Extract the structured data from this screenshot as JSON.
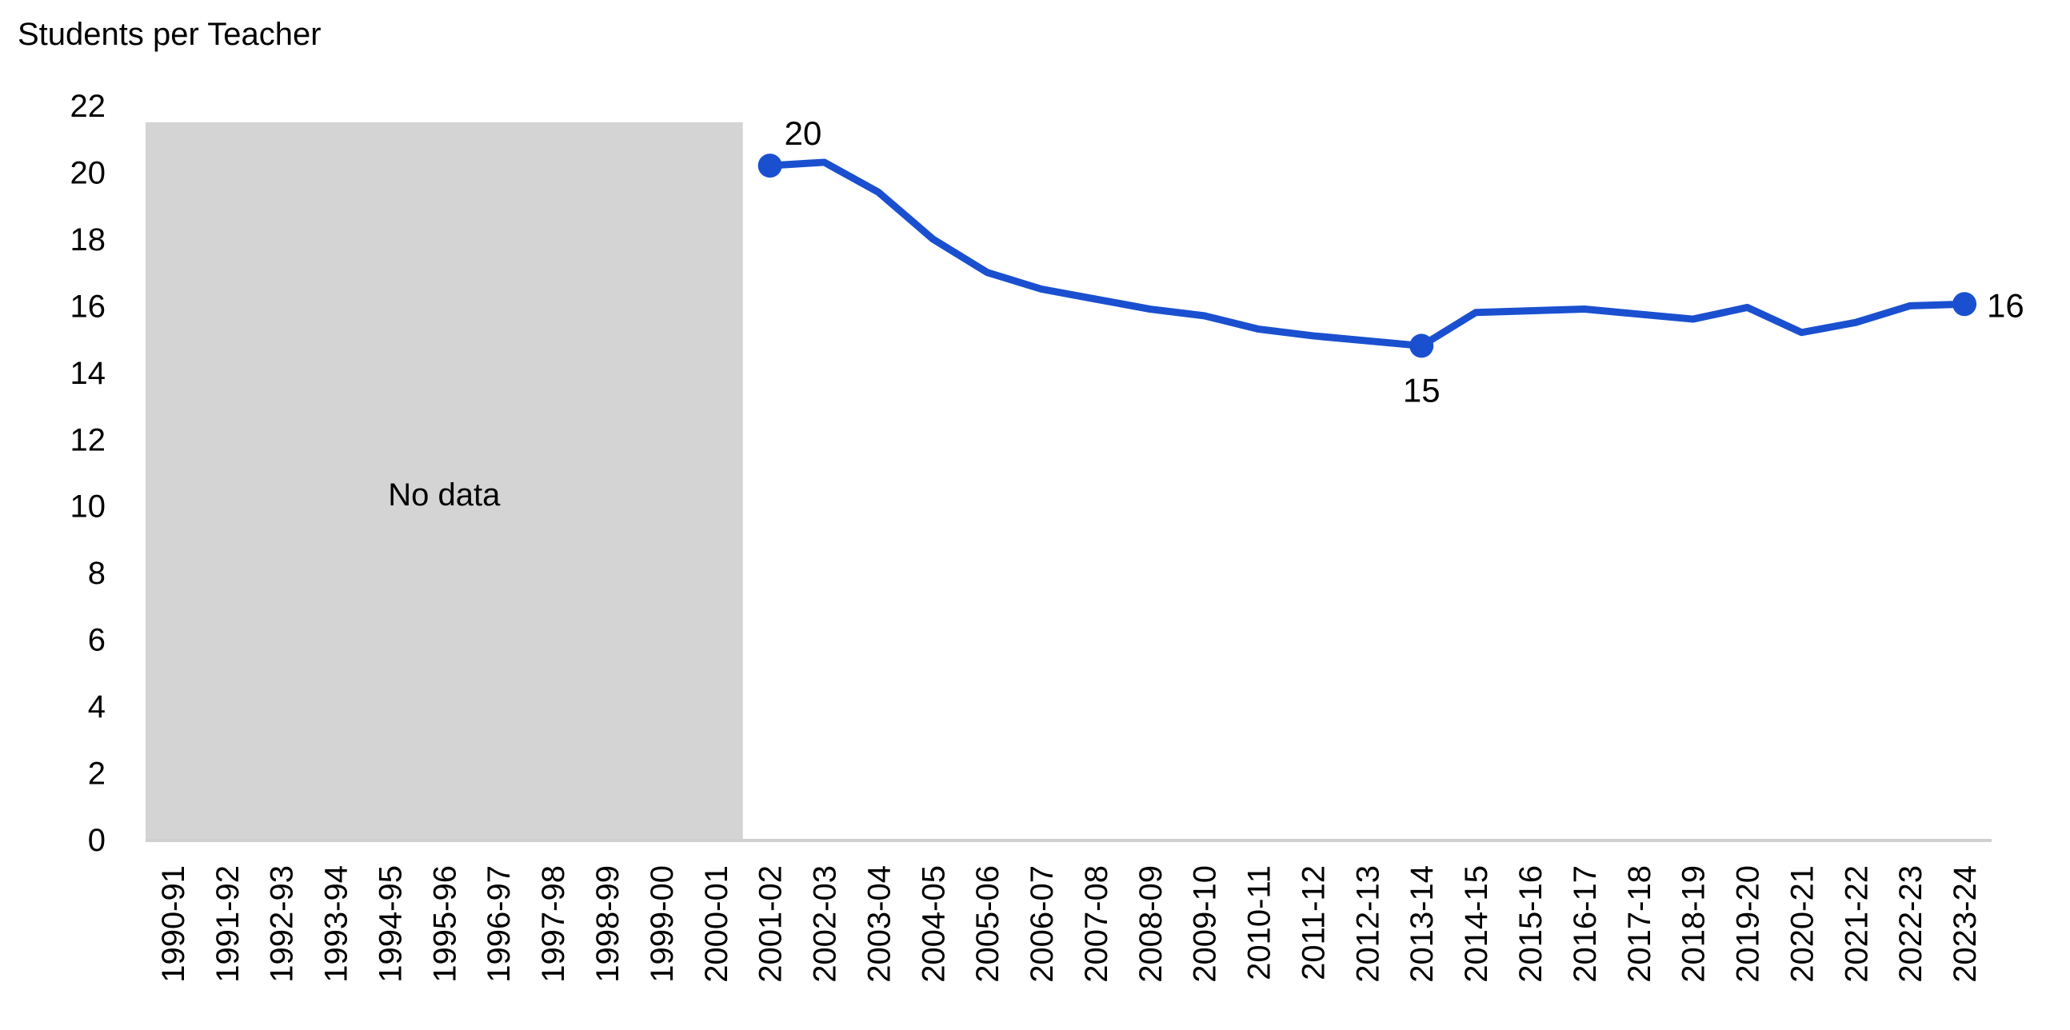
{
  "chart_data": {
    "type": "line",
    "ylabel": "Students per Teacher",
    "ylim": [
      0,
      22
    ],
    "yticks": [
      0,
      2,
      4,
      6,
      8,
      10,
      12,
      14,
      16,
      18,
      20,
      22
    ],
    "categories": [
      "1990-91",
      "1991-92",
      "1992-93",
      "1993-94",
      "1994-95",
      "1995-96",
      "1996-97",
      "1997-98",
      "1998-99",
      "1999-00",
      "2000-01",
      "2001-02",
      "2002-03",
      "2003-04",
      "2004-05",
      "2005-06",
      "2006-07",
      "2007-08",
      "2008-09",
      "2009-10",
      "2010-11",
      "2011-12",
      "2012-13",
      "2013-14",
      "2014-15",
      "2015-16",
      "2016-17",
      "2017-18",
      "2018-19",
      "2019-20",
      "2020-21",
      "2021-22",
      "2022-23",
      "2023-24"
    ],
    "series": [
      {
        "values": [
          null,
          null,
          null,
          null,
          null,
          null,
          null,
          null,
          null,
          null,
          null,
          20.2,
          20.3,
          19.4,
          18.0,
          17.0,
          16.5,
          16.2,
          15.9,
          15.7,
          15.3,
          15.1,
          14.95,
          14.8,
          15.8,
          15.85,
          15.9,
          15.75,
          15.6,
          15.95,
          15.2,
          15.5,
          16.0,
          16.05
        ],
        "color": "#1a50d0"
      }
    ],
    "no_data_region": {
      "from": "1990-91",
      "to": "2000-01",
      "label": "No data",
      "color": "#d4d4d4"
    },
    "point_labels": [
      {
        "category": "2001-02",
        "text": "20",
        "position": "above-right"
      },
      {
        "category": "2013-14",
        "text": "15",
        "position": "below"
      },
      {
        "category": "2023-24",
        "text": "16",
        "position": "right"
      }
    ],
    "grid": false,
    "legend": "none"
  }
}
